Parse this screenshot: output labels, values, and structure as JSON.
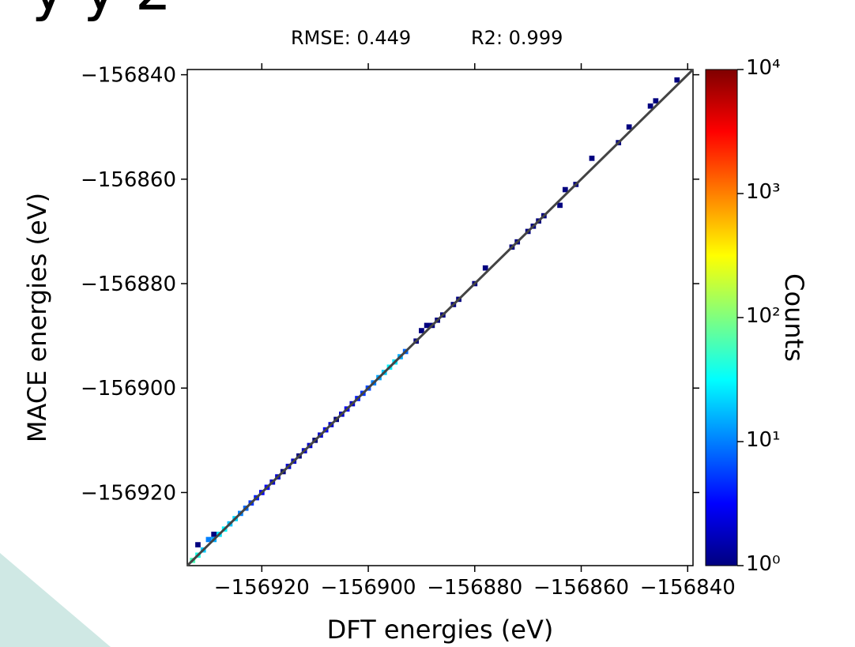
{
  "header": {
    "partial_title": "y y 2"
  },
  "chart_data": {
    "type": "heatmap",
    "subtitle_rmse": "RMSE: 0.449",
    "subtitle_r2": "R2: 0.999",
    "xlabel": "DFT energies (eV)",
    "ylabel": "MACE energies (eV)",
    "xlim": [
      -156934,
      -156839
    ],
    "ylim": [
      -156934,
      -156839
    ],
    "xticks": [
      -156920,
      -156900,
      -156880,
      -156860,
      -156840
    ],
    "yticks": [
      -156840,
      -156860,
      -156880,
      -156900,
      -156920
    ],
    "xtick_labels": [
      "−156920",
      "−156900",
      "−156880",
      "−156860",
      "−156840"
    ],
    "ytick_labels": [
      "−156840",
      "−156860",
      "−156880",
      "−156900",
      "−156920"
    ],
    "colorbar": {
      "label": "Counts",
      "scale": "log",
      "range": [
        1,
        10000
      ],
      "tick_labels": [
        "10⁰",
        "10¹",
        "10²",
        "10³",
        "10⁴"
      ]
    },
    "reference_line": "y = x",
    "points": [
      [
        -156933,
        -156933,
        60
      ],
      [
        -156932,
        -156932,
        40
      ],
      [
        -156931,
        -156931,
        20
      ],
      [
        -156932,
        -156930,
        1
      ],
      [
        -156930,
        -156929,
        10
      ],
      [
        -156929,
        -156928,
        1
      ],
      [
        -156929,
        -156929,
        15
      ],
      [
        -156928,
        -156928,
        25
      ],
      [
        -156927,
        -156927,
        30
      ],
      [
        -156926,
        -156926,
        18
      ],
      [
        -156925,
        -156925,
        22
      ],
      [
        -156924,
        -156924,
        10
      ],
      [
        -156923,
        -156923,
        8
      ],
      [
        -156922,
        -156922,
        5
      ],
      [
        -156921,
        -156921,
        4
      ],
      [
        -156920,
        -156920,
        3
      ],
      [
        -156919,
        -156919,
        3
      ],
      [
        -156918,
        -156918,
        2
      ],
      [
        -156917,
        -156917,
        2
      ],
      [
        -156916,
        -156916,
        1
      ],
      [
        -156915,
        -156915,
        2
      ],
      [
        -156914,
        -156914,
        2
      ],
      [
        -156913,
        -156913,
        1
      ],
      [
        -156912,
        -156912,
        2
      ],
      [
        -156911,
        -156911,
        2
      ],
      [
        -156910,
        -156910,
        1
      ],
      [
        -156909,
        -156909,
        2
      ],
      [
        -156908,
        -156908,
        3
      ],
      [
        -156907,
        -156907,
        2
      ],
      [
        -156906,
        -156906,
        1
      ],
      [
        -156905,
        -156905,
        2
      ],
      [
        -156904,
        -156904,
        3
      ],
      [
        -156903,
        -156903,
        2
      ],
      [
        -156902,
        -156902,
        4
      ],
      [
        -156901,
        -156901,
        5
      ],
      [
        -156900,
        -156900,
        6
      ],
      [
        -156899,
        -156899,
        10
      ],
      [
        -156898,
        -156898,
        14
      ],
      [
        -156897,
        -156897,
        20
      ],
      [
        -156896,
        -156896,
        28
      ],
      [
        -156895,
        -156895,
        25
      ],
      [
        -156894,
        -156894,
        15
      ],
      [
        -156893,
        -156893,
        8
      ],
      [
        -156891,
        -156891,
        1
      ],
      [
        -156890,
        -156889,
        1
      ],
      [
        -156889,
        -156888,
        1
      ],
      [
        -156888,
        -156888,
        1
      ],
      [
        -156887,
        -156887,
        1
      ],
      [
        -156886,
        -156886,
        1
      ],
      [
        -156884,
        -156884,
        1
      ],
      [
        -156883,
        -156883,
        1
      ],
      [
        -156880,
        -156880,
        1
      ],
      [
        -156878,
        -156877,
        1
      ],
      [
        -156873,
        -156873,
        1
      ],
      [
        -156872,
        -156872,
        1
      ],
      [
        -156870,
        -156870,
        1
      ],
      [
        -156869,
        -156869,
        1
      ],
      [
        -156868,
        -156868,
        1
      ],
      [
        -156867,
        -156867,
        1
      ],
      [
        -156864,
        -156865,
        1
      ],
      [
        -156863,
        -156862,
        1
      ],
      [
        -156861,
        -156861,
        1
      ],
      [
        -156858,
        -156856,
        1
      ],
      [
        -156853,
        -156853,
        1
      ],
      [
        -156851,
        -156850,
        1
      ],
      [
        -156847,
        -156846,
        1
      ],
      [
        -156846,
        -156845,
        1
      ],
      [
        -156842,
        -156841,
        1
      ]
    ]
  }
}
